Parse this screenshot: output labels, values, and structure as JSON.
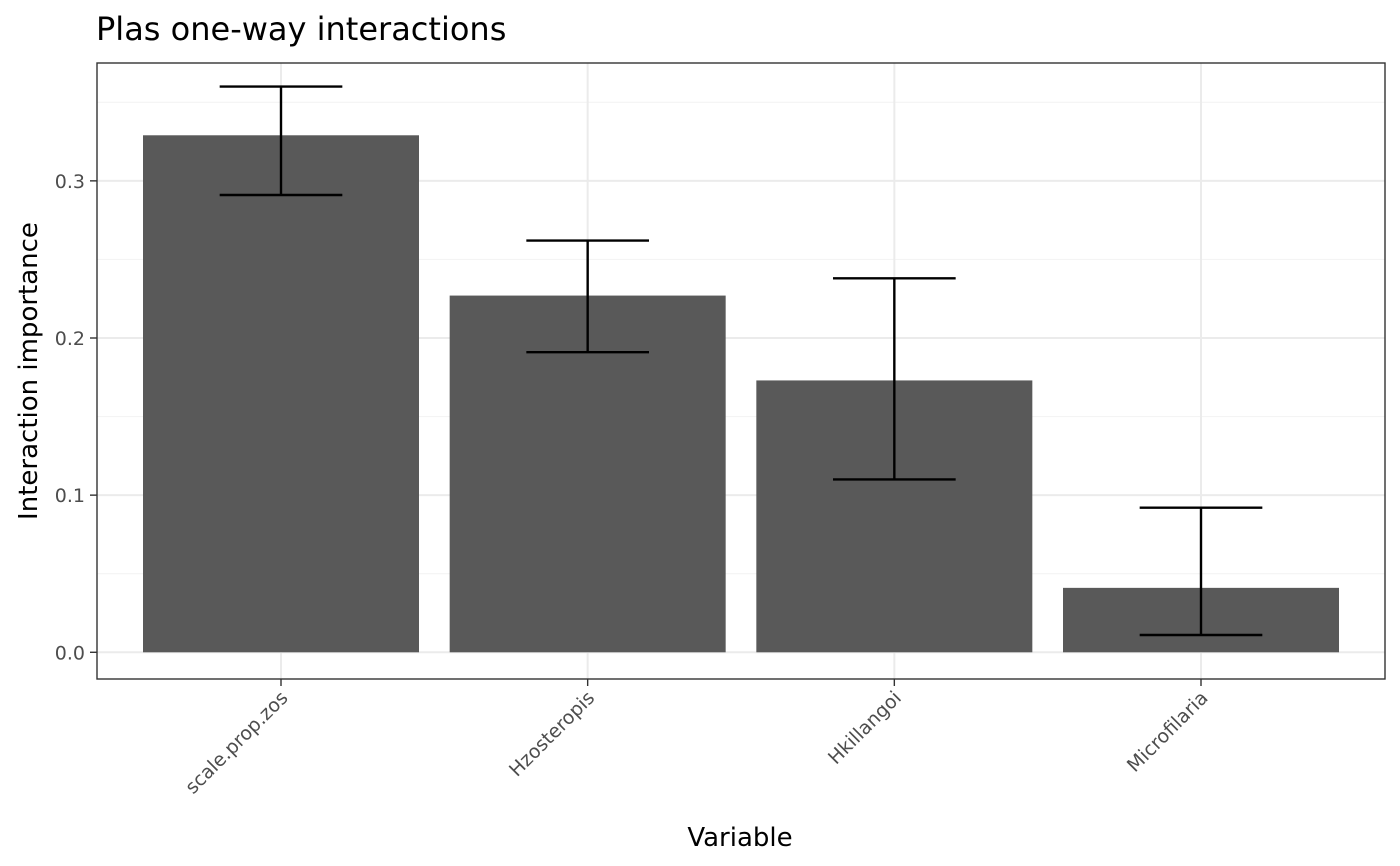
{
  "chart_data": {
    "type": "bar",
    "title": "Plas one-way interactions",
    "xlabel": "Variable",
    "ylabel": "Interaction importance",
    "categories": [
      "scale.prop.zos",
      "Hzosteropis",
      "Hkillangoi",
      "Microfilaria"
    ],
    "values": [
      0.329,
      0.227,
      0.173,
      0.041
    ],
    "error_low": [
      0.291,
      0.191,
      0.11,
      0.011
    ],
    "error_high": [
      0.36,
      0.262,
      0.238,
      0.092
    ],
    "ylim": [
      -0.017,
      0.375
    ],
    "yticks": [
      0.0,
      0.1,
      0.2,
      0.3
    ],
    "ytick_labels": [
      "0.0",
      "0.1",
      "0.2",
      "0.3"
    ],
    "grid": true,
    "bar_color": "#595959",
    "errorbar_color": "#000000"
  }
}
